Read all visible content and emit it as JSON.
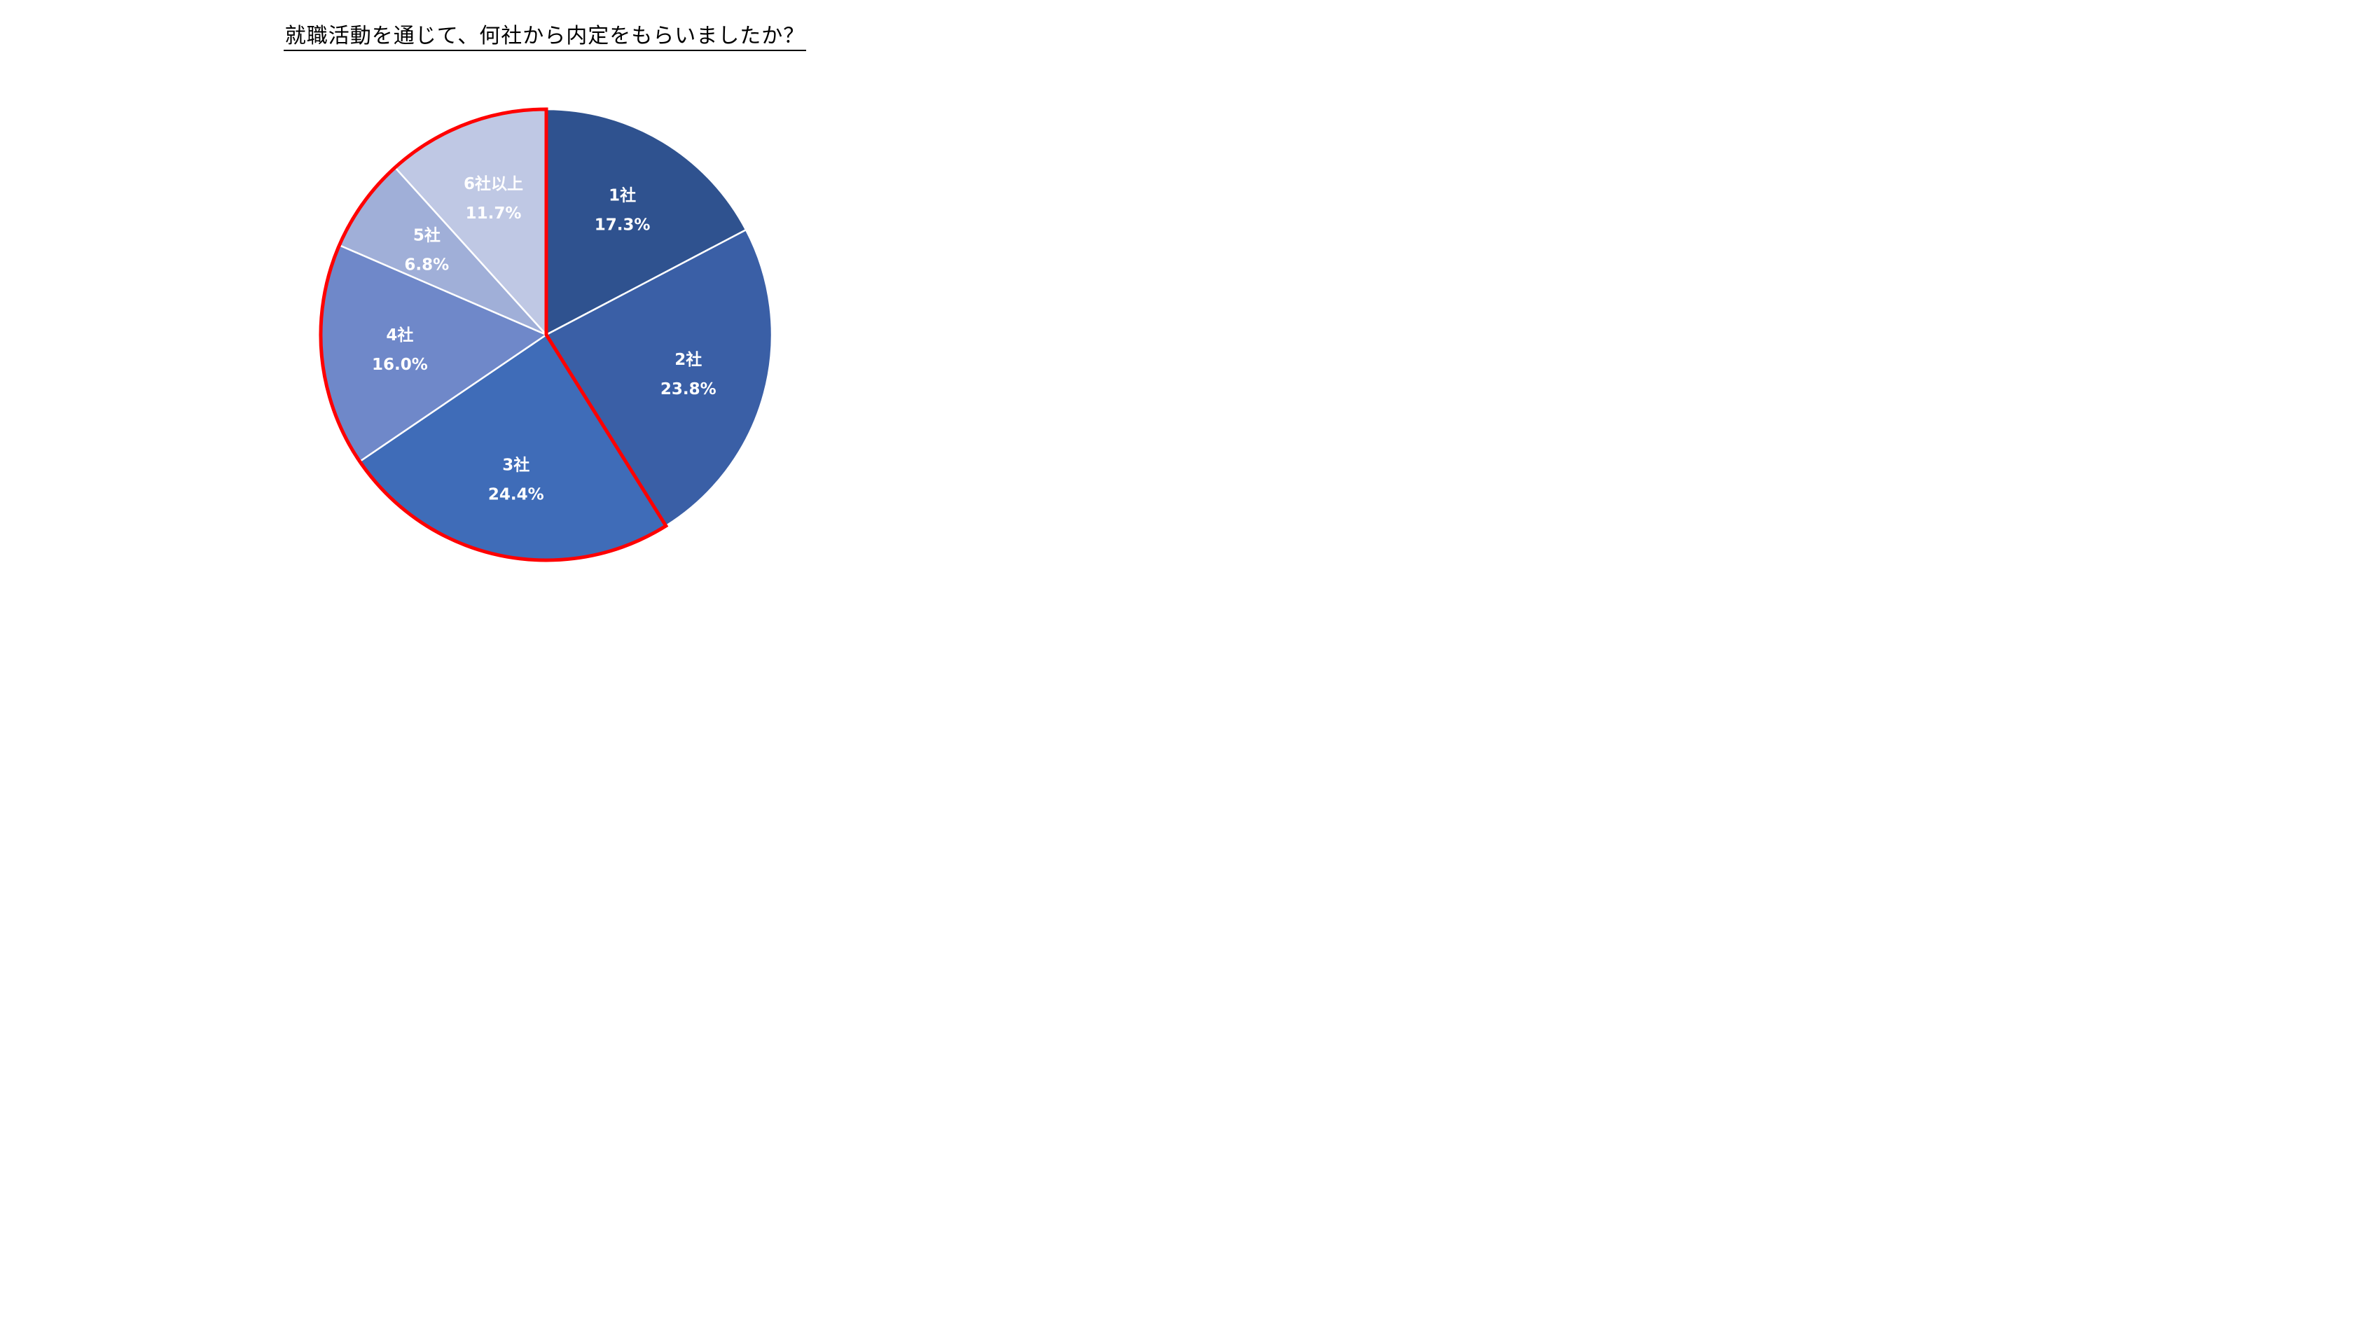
{
  "chart_data": {
    "type": "pie",
    "title": "就職活動を通じて、何社から内定をもらいましたか？",
    "slices": [
      {
        "label": "1社",
        "value": 17.3,
        "value_label": "17.3%",
        "color": "#2f528f"
      },
      {
        "label": "2社",
        "value": 23.8,
        "value_label": "23.8%",
        "color": "#3a5fa6"
      },
      {
        "label": "3社",
        "value": 24.4,
        "value_label": "24.4%",
        "color": "#3f6cb8",
        "highlighted": true
      },
      {
        "label": "4社",
        "value": 16.0,
        "value_label": "16.0%",
        "color": "#6f88c9",
        "highlighted": true
      },
      {
        "label": "5社",
        "value": 6.8,
        "value_label": "6.8%",
        "color": "#a0afd8",
        "highlighted": true
      },
      {
        "label": "6社以上",
        "value": 11.7,
        "value_label": "11.7%",
        "color": "#bfc8e4",
        "highlighted": true
      }
    ],
    "start_angle": "12 o'clock",
    "direction": "clockwise",
    "highlight_color": "#ff0000",
    "legend": "none"
  }
}
